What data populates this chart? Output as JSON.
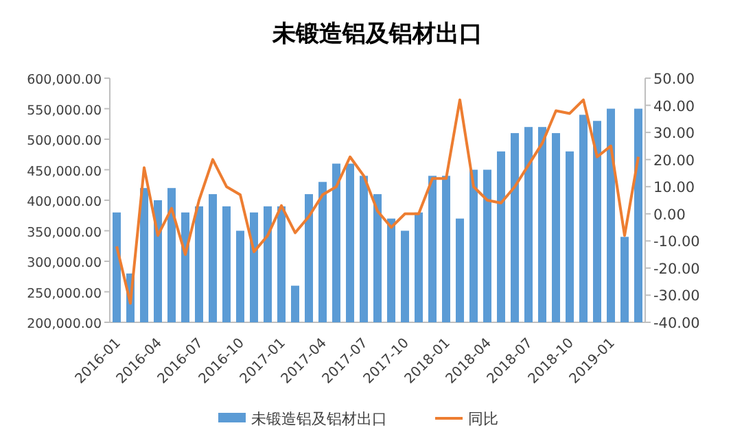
{
  "chart_data": {
    "type": "bar",
    "title": "未锻造铝及铝材出口",
    "categories": [
      "2016-01",
      null,
      null,
      "2016-04",
      null,
      null,
      "2016-07",
      null,
      null,
      "2016-10",
      null,
      null,
      "2017-01",
      null,
      null,
      "2017-04",
      null,
      null,
      "2017-07",
      null,
      null,
      "2017-10",
      null,
      null,
      "2018-01",
      null,
      null,
      "2018-04",
      null,
      null,
      "2018-07",
      null,
      null,
      "2018-10",
      null,
      null,
      "2019-01",
      null,
      null
    ],
    "series": [
      {
        "name": "未锻造铝及铝材出口",
        "color": "#5b9bd5",
        "values": [
          380000,
          280000,
          420000,
          400000,
          420000,
          380000,
          390000,
          410000,
          390000,
          350000,
          380000,
          390000,
          390000,
          260000,
          410000,
          430000,
          460000,
          460000,
          440000,
          410000,
          370000,
          350000,
          380000,
          440000,
          440000,
          370000,
          450000,
          450000,
          480000,
          510000,
          520000,
          520000,
          510000,
          480000,
          540000,
          530000,
          550000,
          340000,
          550000
        ]
      },
      {
        "name": "同比",
        "type": "line",
        "axis": "y2",
        "color": "#ed7d31",
        "values": [
          -12,
          -33,
          17,
          -8,
          2,
          -15,
          5,
          20,
          10,
          7,
          -14,
          -8,
          3,
          -7,
          -1,
          7,
          10,
          21,
          14,
          1,
          -5,
          0,
          0,
          13,
          13,
          42,
          10,
          5,
          4,
          10,
          18,
          26,
          38,
          37,
          42,
          21,
          25,
          -8,
          21
        ]
      }
    ],
    "ylim": [
      200000,
      600000
    ],
    "yticks": [
      {
        "value": 200000,
        "label": "200,000.00"
      },
      {
        "value": 250000,
        "label": "250,000.00"
      },
      {
        "value": 300000,
        "label": "300,000.00"
      },
      {
        "value": 350000,
        "label": "350,000.00"
      },
      {
        "value": 400000,
        "label": "400,000.00"
      },
      {
        "value": 450000,
        "label": "450,000.00"
      },
      {
        "value": 500000,
        "label": "500,000.00"
      },
      {
        "value": 550000,
        "label": "550,000.00"
      },
      {
        "value": 600000,
        "label": "600,000.00"
      }
    ],
    "y2lim": [
      -40,
      50
    ],
    "y2ticks": [
      {
        "value": -40,
        "label": "-40.00"
      },
      {
        "value": -30,
        "label": "-30.00"
      },
      {
        "value": -20,
        "label": "-20.00"
      },
      {
        "value": -10,
        "label": "-10.00"
      },
      {
        "value": 0,
        "label": "0.00"
      },
      {
        "value": 10,
        "label": "10.00"
      },
      {
        "value": 20,
        "label": "20.00"
      },
      {
        "value": 30,
        "label": "30.00"
      },
      {
        "value": 40,
        "label": "40.00"
      },
      {
        "value": 50,
        "label": "50.00"
      }
    ],
    "legend": "bottom",
    "grid": false
  }
}
